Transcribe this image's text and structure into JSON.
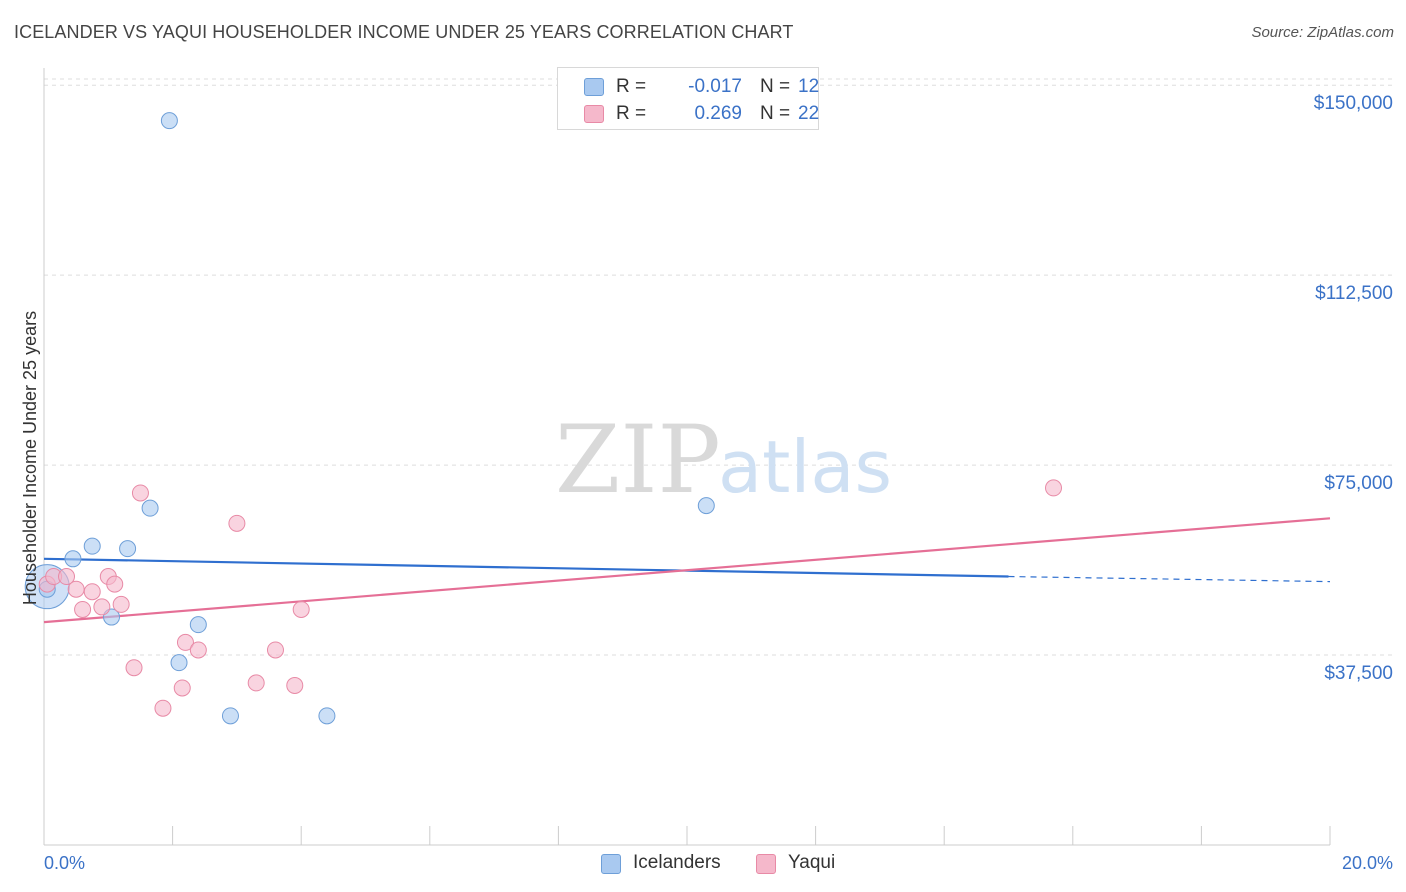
{
  "header": {
    "title": "ICELANDER VS YAQUI HOUSEHOLDER INCOME UNDER 25 YEARS CORRELATION CHART",
    "source": "Source: ZipAtlas.com"
  },
  "watermark": {
    "zip": "ZIP",
    "atlas": "atlas"
  },
  "legend": {
    "rows": [
      {
        "r_label": "R =",
        "r_value": "-0.017",
        "n_label": "N =",
        "n_value": "12",
        "color": "#a9c9f0"
      },
      {
        "r_label": "R =",
        "r_value": "0.269",
        "n_label": "N =",
        "n_value": "22",
        "color": "#f5b8cb"
      }
    ]
  },
  "bottom_legend": [
    {
      "label": "Icelanders",
      "color": "#a9c9f0"
    },
    {
      "label": "Yaqui",
      "color": "#f5b8cb"
    }
  ],
  "chart_data": {
    "type": "scatter",
    "title": "ICELANDER VS YAQUI HOUSEHOLDER INCOME UNDER 25 YEARS CORRELATION CHART",
    "xlabel": "",
    "ylabel": "Householder Income Under 25 years",
    "xlim": [
      0,
      20
    ],
    "ylim": [
      0,
      153000
    ],
    "x_tick_labels": [
      "0.0%",
      "20.0%"
    ],
    "y_ticks": [
      37500,
      75000,
      112500,
      150000
    ],
    "y_tick_labels": [
      "$37,500",
      "$75,000",
      "$112,500",
      "$150,000"
    ],
    "grid": true,
    "series": [
      {
        "name": "Icelanders",
        "color": "#a9c9f0",
        "stroke": "#6e9fd8",
        "points": [
          [
            0.05,
            50500
          ],
          [
            0.45,
            56500
          ],
          [
            0.75,
            59000
          ],
          [
            1.05,
            45000
          ],
          [
            1.3,
            58500
          ],
          [
            1.65,
            66500
          ],
          [
            1.95,
            143000
          ],
          [
            2.1,
            36000
          ],
          [
            2.4,
            43500
          ],
          [
            2.9,
            25500
          ],
          [
            4.4,
            25500
          ],
          [
            10.3,
            67000
          ]
        ],
        "trend": {
          "x": [
            0,
            15
          ],
          "y": [
            56500,
            53000
          ],
          "dashed_to": [
            20,
            52000
          ],
          "color": "#2f6fcf"
        }
      },
      {
        "name": "Yaqui",
        "color": "#f5b8cb",
        "stroke": "#e88aa6",
        "points": [
          [
            0.05,
            51500
          ],
          [
            0.15,
            53000
          ],
          [
            0.35,
            53000
          ],
          [
            0.5,
            50500
          ],
          [
            0.6,
            46500
          ],
          [
            0.75,
            50000
          ],
          [
            0.9,
            47000
          ],
          [
            1.0,
            53000
          ],
          [
            1.1,
            51500
          ],
          [
            1.2,
            47500
          ],
          [
            1.4,
            35000
          ],
          [
            1.5,
            69500
          ],
          [
            1.85,
            27000
          ],
          [
            2.15,
            31000
          ],
          [
            2.2,
            40000
          ],
          [
            2.4,
            38500
          ],
          [
            3.0,
            63500
          ],
          [
            3.3,
            32000
          ],
          [
            3.6,
            38500
          ],
          [
            3.9,
            31500
          ],
          [
            4.0,
            46500
          ],
          [
            15.7,
            70500
          ]
        ],
        "trend": {
          "x": [
            0,
            20
          ],
          "y": [
            44000,
            64500
          ],
          "color": "#e56f96"
        }
      }
    ]
  }
}
